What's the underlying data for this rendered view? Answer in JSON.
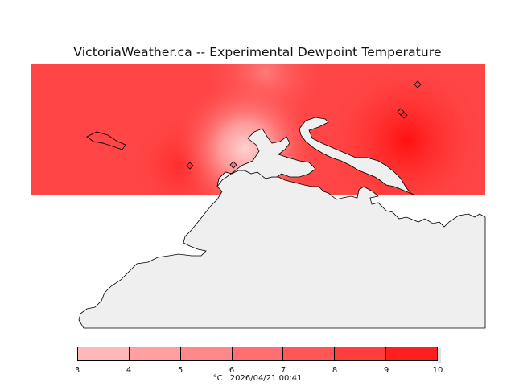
{
  "title": "VictoriaWeather.ca -- Experimental Dewpoint Temperature",
  "legend": {
    "ticks": [
      "3",
      "4",
      "5",
      "6",
      "7",
      "8",
      "9",
      "10"
    ],
    "colors": [
      "#ffb7b7",
      "#ff9f9f",
      "#ff8888",
      "#ff6f6f",
      "#ff5656",
      "#ff3d3d",
      "#ff1f1f"
    ],
    "unit": "°C",
    "timestamp": "2026/04/21 00:41"
  },
  "colors": {
    "field_base": "#ff4545",
    "land": "#efefef",
    "coastline": "#000000",
    "station_marker": "#b03030"
  },
  "stations": {
    "count": 5
  }
}
